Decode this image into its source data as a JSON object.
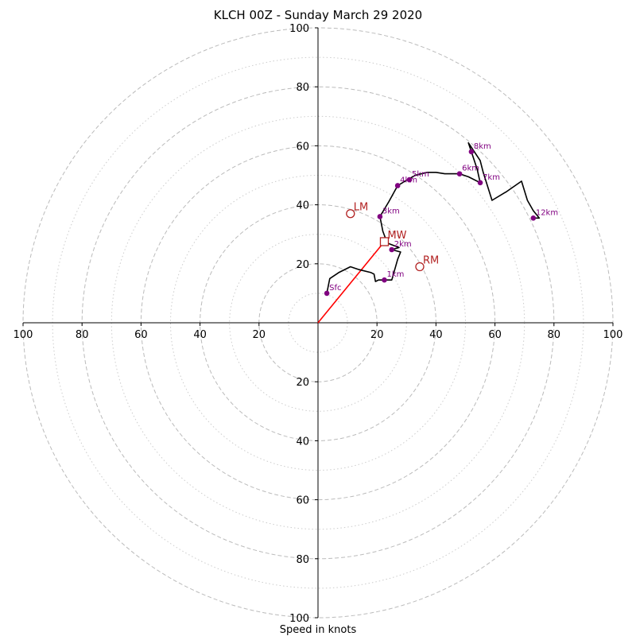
{
  "chart_data": {
    "type": "hodograph",
    "title": "KLCH 00Z - Sunday March 29 2020",
    "xlabel": "Speed in knots",
    "units": "knots",
    "range": [
      -100,
      100
    ],
    "major_rings": [
      20,
      40,
      60,
      80,
      100
    ],
    "minor_rings": [
      10,
      30,
      50,
      70,
      90
    ],
    "tick_labels": [
      "20",
      "40",
      "60",
      "80",
      "100"
    ],
    "colors": {
      "trace": "#000000",
      "height_points": "#800080",
      "storm_motion": "#b22222",
      "shear_vector": "#ff0000",
      "grid": "#bbbbbb"
    },
    "hodograph_trace": [
      [
        3,
        10
      ],
      [
        4,
        15
      ],
      [
        7,
        17
      ],
      [
        10,
        18.5
      ],
      [
        11,
        19
      ],
      [
        14,
        18
      ],
      [
        18,
        17
      ],
      [
        19,
        16.5
      ],
      [
        19.5,
        14
      ],
      [
        20.5,
        14.5
      ],
      [
        22.5,
        14.5
      ],
      [
        25,
        14.5
      ],
      [
        26,
        18
      ],
      [
        27,
        21.5
      ],
      [
        28,
        24
      ],
      [
        25,
        24.8
      ],
      [
        27.5,
        25.5
      ],
      [
        23.5,
        27
      ],
      [
        22,
        31
      ],
      [
        21,
        36
      ],
      [
        24,
        41
      ],
      [
        27,
        46.5
      ],
      [
        29.5,
        48
      ],
      [
        33,
        50
      ],
      [
        37,
        51
      ],
      [
        40,
        51
      ],
      [
        43,
        50.5
      ],
      [
        48,
        50.5
      ],
      [
        51,
        49.5
      ],
      [
        55,
        47.5
      ],
      [
        54,
        52
      ],
      [
        52,
        58
      ],
      [
        51,
        61
      ],
      [
        55,
        55
      ],
      [
        56,
        51
      ],
      [
        59,
        41.5
      ],
      [
        64,
        44.5
      ],
      [
        69,
        48
      ],
      [
        71,
        41.5
      ],
      [
        73,
        38
      ],
      [
        75,
        35.5
      ],
      [
        73,
        35.5
      ]
    ],
    "height_points": [
      {
        "label": "Sfc",
        "u": 3,
        "v": 10
      },
      {
        "label": "1km",
        "u": 22.5,
        "v": 14.5
      },
      {
        "label": "2km",
        "u": 25,
        "v": 24.8
      },
      {
        "label": "3km",
        "u": 21,
        "v": 36
      },
      {
        "label": "4km",
        "u": 27,
        "v": 46.5
      },
      {
        "label": "5km",
        "u": 31,
        "v": 48.5
      },
      {
        "label": "6km",
        "u": 48,
        "v": 50.5
      },
      {
        "label": "7km",
        "u": 55,
        "v": 47.5
      },
      {
        "label": "8km",
        "u": 52,
        "v": 58
      },
      {
        "label": "12km",
        "u": 73,
        "v": 35.5
      }
    ],
    "storm_motions": [
      {
        "label": "LM",
        "u": 11,
        "v": 37,
        "marker": "circle"
      },
      {
        "label": "MW",
        "u": 22.5,
        "v": 27.5,
        "marker": "square"
      },
      {
        "label": "RM",
        "u": 34.5,
        "v": 19,
        "marker": "circle"
      }
    ],
    "shear_vector": {
      "from": [
        0,
        0
      ],
      "to": [
        22.5,
        27.5
      ]
    }
  }
}
